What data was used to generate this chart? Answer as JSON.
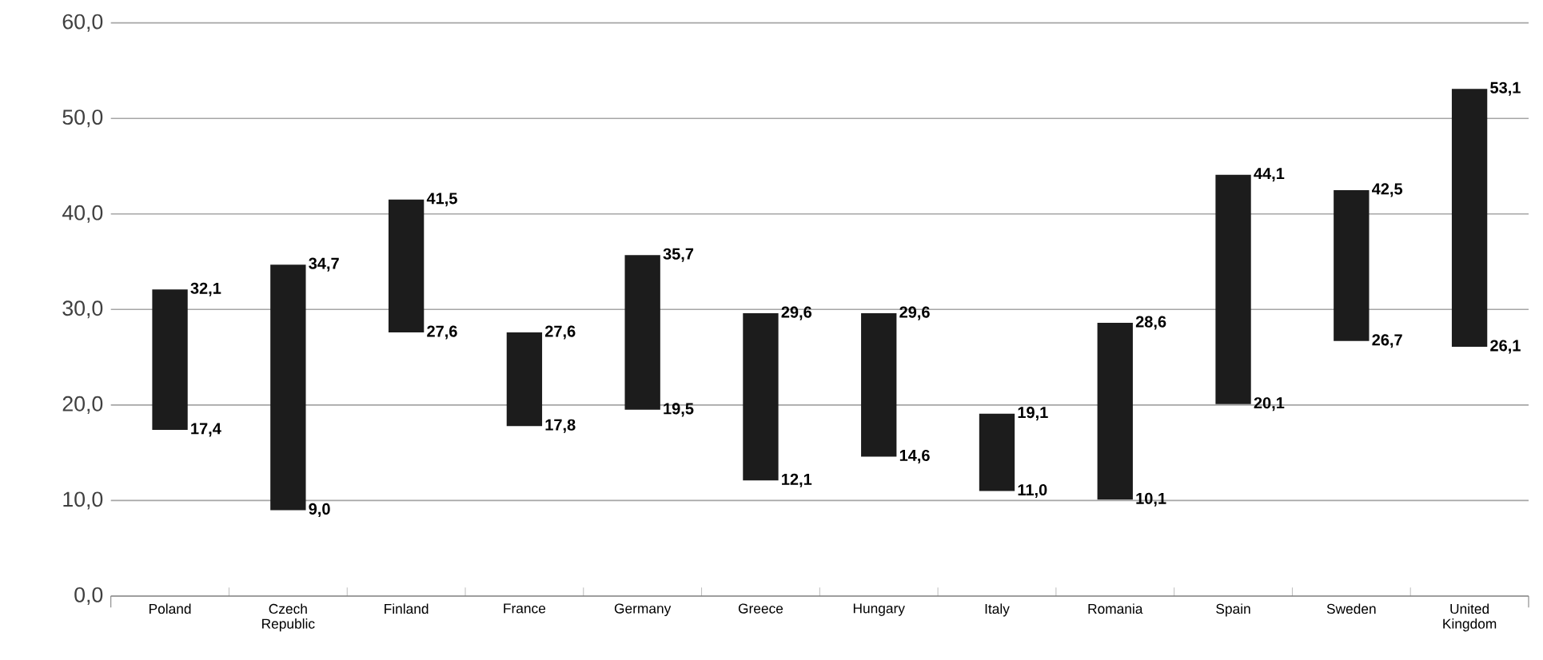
{
  "chart_data": {
    "type": "bar",
    "categories": [
      "Poland",
      "Czech Republic",
      "Finland",
      "France",
      "Germany",
      "Greece",
      "Hungary",
      "Italy",
      "Romania",
      "Spain",
      "Sweden",
      "United Kingdom"
    ],
    "base": [
      17.4,
      9.0,
      27.6,
      17.8,
      19.5,
      12.1,
      14.6,
      11.0,
      10.1,
      20.1,
      26.7,
      26.1
    ],
    "values": [
      14.7,
      25.7,
      13.9,
      9.8,
      16.2,
      17.5,
      15.0,
      8.1,
      18.5,
      24.0,
      15.8,
      27.0
    ],
    "color": "#1c1c1c",
    "ylim": [
      0,
      60
    ],
    "yticks": [
      {
        "value": 0,
        "label": "0,0"
      },
      {
        "value": 10,
        "label": "10,0"
      },
      {
        "value": 20,
        "label": "20,0"
      },
      {
        "value": 30,
        "label": "30,0"
      },
      {
        "value": 40,
        "label": "40,0"
      },
      {
        "value": 50,
        "label": "50,0"
      },
      {
        "value": 60,
        "label": "60,0"
      }
    ],
    "grid": "y",
    "annotations": [
      "32,1",
      "17,4",
      "34,7",
      "9,0",
      "41,5",
      "27,6",
      "27,6",
      "17,8",
      "35,7",
      "19,5",
      "29,6",
      "12,1",
      "29,6",
      "14,6",
      "19,1",
      "11,0",
      "28,6",
      "10,1",
      "44,1",
      "20,1",
      "42,5",
      "26,7",
      "53,1",
      "26,1"
    ]
  }
}
